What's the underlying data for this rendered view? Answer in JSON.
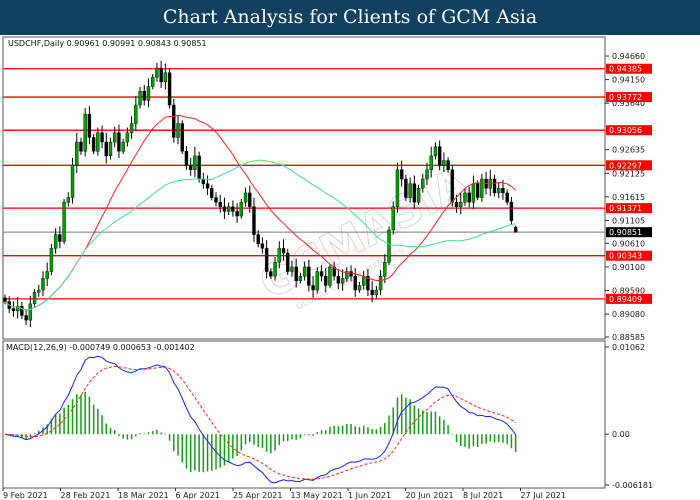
{
  "title": "Chart Analysis for Clients of GCM Asia",
  "watermark": {
    "brand": "GCMASIA",
    "tagline": "GLOBAL CAPITAL MARKETS"
  },
  "chart_data": [
    {
      "type": "candlestick",
      "header": "USDCHF,Daily  0.90961 0.90991 0.90843 0.90851",
      "symbol": "USDCHF",
      "timeframe": "Daily",
      "ylim": [
        0.88585,
        0.9466
      ],
      "y_ticks": [
        "0.94660",
        "0.94150",
        "0.93640",
        "0.92635",
        "0.92125",
        "0.91615",
        "0.91105",
        "0.90610",
        "0.90100",
        "0.89590",
        "0.89080",
        "0.88585"
      ],
      "closes": [
        0.8935,
        0.892,
        0.8915,
        0.8925,
        0.8905,
        0.8895,
        0.893,
        0.8955,
        0.896,
        0.8985,
        0.9,
        0.905,
        0.908,
        0.9065,
        0.915,
        0.916,
        0.923,
        0.928,
        0.926,
        0.934,
        0.929,
        0.926,
        0.93,
        0.928,
        0.925,
        0.928,
        0.93,
        0.926,
        0.928,
        0.93,
        0.932,
        0.936,
        0.939,
        0.937,
        0.94,
        0.942,
        0.944,
        0.941,
        0.943,
        0.936,
        0.929,
        0.932,
        0.926,
        0.923,
        0.922,
        0.925,
        0.92,
        0.919,
        0.918,
        0.916,
        0.915,
        0.914,
        0.913,
        0.914,
        0.913,
        0.912,
        0.915,
        0.917,
        0.914,
        0.908,
        0.906,
        0.905,
        0.9,
        0.899,
        0.902,
        0.905,
        0.904,
        0.9,
        0.901,
        0.898,
        0.899,
        0.901,
        0.897,
        0.896,
        0.9,
        0.899,
        0.897,
        0.901,
        0.899,
        0.8975,
        0.8985,
        0.9,
        0.899,
        0.896,
        0.897,
        0.899,
        0.896,
        0.895,
        0.896,
        0.899,
        0.902,
        0.909,
        0.914,
        0.922,
        0.92,
        0.916,
        0.919,
        0.915,
        0.918,
        0.92,
        0.922,
        0.925,
        0.927,
        0.923,
        0.924,
        0.922,
        0.915,
        0.914,
        0.915,
        0.917,
        0.915,
        0.919,
        0.916,
        0.92,
        0.918,
        0.92,
        0.917,
        0.918,
        0.917,
        0.915,
        0.911,
        0.9085
      ],
      "last_bar": {
        "open": 0.90961,
        "high": 0.90991,
        "low": 0.90843,
        "close": 0.90851
      },
      "levels": [
        {
          "value": "0.94385",
          "color": "#ff0000"
        },
        {
          "value": "0.93772",
          "color": "#ff0000"
        },
        {
          "value": "0.93056",
          "color": "#ff0000"
        },
        {
          "value": "0.92297",
          "color": "#ff0000"
        },
        {
          "value": "0.91371",
          "color": "#ff0000"
        },
        {
          "value": "0.90343",
          "color": "#ff0000"
        },
        {
          "value": "0.89409",
          "color": "#ff0000"
        }
      ],
      "current_price": {
        "value": "0.90851",
        "color": "#000000"
      },
      "moving_averages": [
        {
          "color": "#ff2020",
          "period": 20
        },
        {
          "color": "#40e090",
          "period": 50
        }
      ],
      "colors": {
        "up": "#00a000",
        "down": "#000000"
      }
    },
    {
      "type": "macd",
      "header": "MACD(12,26,9) -0.000749 0.000653 -0.001402",
      "params": [
        12,
        26,
        9
      ],
      "ylim": [
        -0.006181,
        0.01062
      ],
      "y_ticks": [
        "0.01062",
        "0.00",
        "-0.006181"
      ],
      "colors": {
        "macd": "#2020ff",
        "signal": "#ff2020",
        "histogram": "#10a010"
      }
    }
  ],
  "x_ticks": [
    "9 Feb 2021",
    "28 Feb 2021",
    "18 Mar 2021",
    "6 Apr 2021",
    "25 Apr 2021",
    "13 May 2021",
    "1 Jun 2021",
    "20 Jun 2021",
    "8 Jul 2021",
    "27 Jul 2021"
  ]
}
